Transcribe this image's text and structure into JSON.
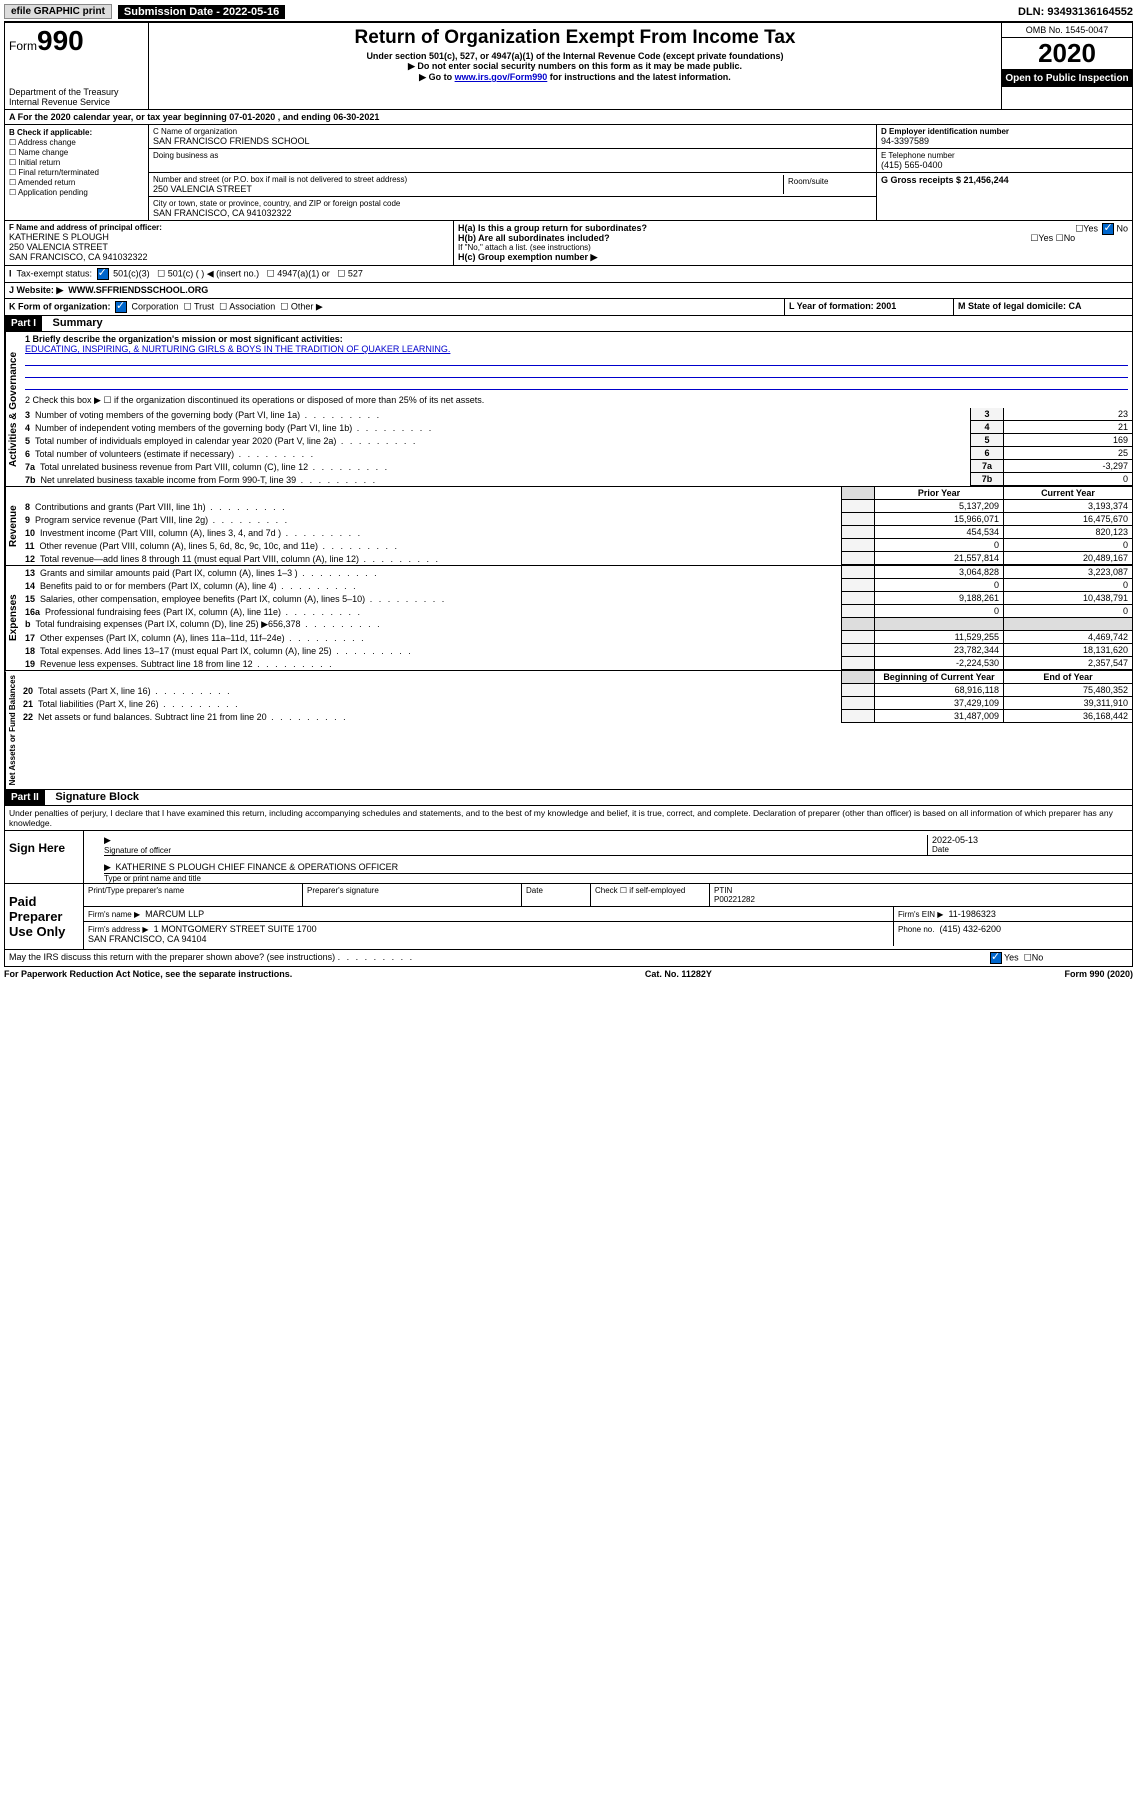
{
  "top": {
    "efile": "efile GRAPHIC print",
    "subdate_label": "Submission Date - 2022-05-16",
    "dln": "DLN: 93493136164552"
  },
  "header": {
    "form_prefix": "Form",
    "form_num": "990",
    "dept": "Department of the Treasury\nInternal Revenue Service",
    "title": "Return of Organization Exempt From Income Tax",
    "sub1": "Under section 501(c), 527, or 4947(a)(1) of the Internal Revenue Code (except private foundations)",
    "sub2": "▶ Do not enter social security numbers on this form as it may be made public.",
    "sub3_pre": "▶ Go to ",
    "sub3_link": "www.irs.gov/Form990",
    "sub3_post": " for instructions and the latest information.",
    "omb": "OMB No. 1545-0047",
    "year": "2020",
    "open": "Open to Public Inspection"
  },
  "period": "For the 2020 calendar year, or tax year beginning 07-01-2020   , and ending 06-30-2021",
  "checkif": {
    "label": "B Check if applicable:",
    "opts": [
      "Address change",
      "Name change",
      "Initial return",
      "Final return/terminated",
      "Amended return",
      "Application pending"
    ]
  },
  "entity": {
    "c_label": "C Name of organization",
    "name": "SAN FRANCISCO FRIENDS SCHOOL",
    "dba_label": "Doing business as",
    "addr_label": "Number and street (or P.O. box if mail is not delivered to street address)",
    "room_label": "Room/suite",
    "addr": "250 VALENCIA STREET",
    "city_label": "City or town, state or province, country, and ZIP or foreign postal code",
    "city": "SAN FRANCISCO, CA  941032322",
    "d_label": "D Employer identification number",
    "ein": "94-3397589",
    "e_label": "E Telephone number",
    "phone": "(415) 565-0400",
    "g_label": "G Gross receipts $ 21,456,244",
    "f_label": "F  Name and address of principal officer:",
    "officer": "KATHERINE S PLOUGH\n250 VALENCIA STREET\nSAN FRANCISCO, CA  941032322",
    "ha": "H(a)  Is this a group return for subordinates?",
    "hb": "H(b)  Are all subordinates included?",
    "hb_note": "If \"No,\" attach a list. (see instructions)",
    "hc": "H(c)  Group exemption number ▶",
    "yes": "Yes",
    "no": "No"
  },
  "taxstatus": "Tax-exempt status:",
  "status_opts": [
    "501(c)(3)",
    "501(c) (  ) ◀ (insert no.)",
    "4947(a)(1) or",
    "527"
  ],
  "website_label": "J   Website: ▶",
  "website": "WWW.SFFRIENDSSCHOOL.ORG",
  "k_label": "K Form of organization:",
  "k_opts": [
    "Corporation",
    "Trust",
    "Association",
    "Other ▶"
  ],
  "l_label": "L Year of formation: 2001",
  "m_label": "M State of legal domicile: CA",
  "part1": {
    "hdr": "Part I",
    "title": "Summary",
    "line1_label": "1  Briefly describe the organization's mission or most significant activities:",
    "mission": "EDUCATING, INSPIRING, & NURTURING GIRLS & BOYS IN THE TRADITION OF QUAKER LEARNING.",
    "line2": "2   Check this box ▶ ☐  if the organization discontinued its operations or disposed of more than 25% of its net assets.",
    "lines_gov": [
      {
        "n": "3",
        "t": "Number of voting members of the governing body (Part VI, line 1a)",
        "v": "23"
      },
      {
        "n": "4",
        "t": "Number of independent voting members of the governing body (Part VI, line 1b)",
        "v": "21"
      },
      {
        "n": "5",
        "t": "Total number of individuals employed in calendar year 2020 (Part V, line 2a)",
        "v": "169"
      },
      {
        "n": "6",
        "t": "Total number of volunteers (estimate if necessary)",
        "v": "25"
      },
      {
        "n": "7a",
        "t": "Total unrelated business revenue from Part VIII, column (C), line 12",
        "v": "-3,297"
      },
      {
        "n": "7b",
        "t": "Net unrelated business taxable income from Form 990-T, line 39",
        "v": "0"
      }
    ],
    "col_prior": "Prior Year",
    "col_curr": "Current Year",
    "lines_rev": [
      {
        "n": "8",
        "t": "Contributions and grants (Part VIII, line 1h)",
        "p": "5,137,209",
        "c": "3,193,374"
      },
      {
        "n": "9",
        "t": "Program service revenue (Part VIII, line 2g)",
        "p": "15,966,071",
        "c": "16,475,670"
      },
      {
        "n": "10",
        "t": "Investment income (Part VIII, column (A), lines 3, 4, and 7d )",
        "p": "454,534",
        "c": "820,123"
      },
      {
        "n": "11",
        "t": "Other revenue (Part VIII, column (A), lines 5, 6d, 8c, 9c, 10c, and 11e)",
        "p": "0",
        "c": "0"
      },
      {
        "n": "12",
        "t": "Total revenue—add lines 8 through 11 (must equal Part VIII, column (A), line 12)",
        "p": "21,557,814",
        "c": "20,489,167"
      }
    ],
    "lines_exp": [
      {
        "n": "13",
        "t": "Grants and similar amounts paid (Part IX, column (A), lines 1–3 )",
        "p": "3,064,828",
        "c": "3,223,087"
      },
      {
        "n": "14",
        "t": "Benefits paid to or for members (Part IX, column (A), line 4)",
        "p": "0",
        "c": "0"
      },
      {
        "n": "15",
        "t": "Salaries, other compensation, employee benefits (Part IX, column (A), lines 5–10)",
        "p": "9,188,261",
        "c": "10,438,791"
      },
      {
        "n": "16a",
        "t": "Professional fundraising fees (Part IX, column (A), line 11e)",
        "p": "0",
        "c": "0"
      },
      {
        "n": "b",
        "t": "Total fundraising expenses (Part IX, column (D), line 25) ▶656,378",
        "p": "",
        "c": ""
      },
      {
        "n": "17",
        "t": "Other expenses (Part IX, column (A), lines 11a–11d, 11f–24e)",
        "p": "11,529,255",
        "c": "4,469,742"
      },
      {
        "n": "18",
        "t": "Total expenses. Add lines 13–17 (must equal Part IX, column (A), line 25)",
        "p": "23,782,344",
        "c": "18,131,620"
      },
      {
        "n": "19",
        "t": "Revenue less expenses. Subtract line 18 from line 12",
        "p": "-2,224,530",
        "c": "2,357,547"
      }
    ],
    "col_begin": "Beginning of Current Year",
    "col_end": "End of Year",
    "lines_net": [
      {
        "n": "20",
        "t": "Total assets (Part X, line 16)",
        "p": "68,916,118",
        "c": "75,480,352"
      },
      {
        "n": "21",
        "t": "Total liabilities (Part X, line 26)",
        "p": "37,429,109",
        "c": "39,311,910"
      },
      {
        "n": "22",
        "t": "Net assets or fund balances. Subtract line 21 from line 20",
        "p": "31,487,009",
        "c": "36,168,442"
      }
    ],
    "tabs": {
      "gov": "Activities & Governance",
      "rev": "Revenue",
      "exp": "Expenses",
      "net": "Net Assets or Fund Balances"
    }
  },
  "part2": {
    "hdr": "Part II",
    "title": "Signature Block",
    "decl": "Under penalties of perjury, I declare that I have examined this return, including accompanying schedules and statements, and to the best of my knowledge and belief, it is true, correct, and complete. Declaration of preparer (other than officer) is based on all information of which preparer has any knowledge.",
    "sign_here": "Sign Here",
    "sig_officer": "Signature of officer",
    "date": "Date",
    "sig_date": "2022-05-13",
    "officer_name": "KATHERINE S PLOUGH  CHIEF FINANCE & OPERATIONS OFFICER",
    "type_name": "Type or print name and title",
    "paid": "Paid Preparer Use Only",
    "prep_name_label": "Print/Type preparer's name",
    "prep_sig_label": "Preparer's signature",
    "date_label": "Date",
    "check_self": "Check ☐ if self-employed",
    "ptin_label": "PTIN",
    "ptin": "P00221282",
    "firm_name_label": "Firm's name   ▶",
    "firm_name": "MARCUM LLP",
    "firm_ein_label": "Firm's EIN ▶",
    "firm_ein": "11-1986323",
    "firm_addr_label": "Firm's address ▶",
    "firm_addr": "1 MONTGOMERY STREET SUITE 1700\nSAN FRANCISCO, CA  94104",
    "firm_phone_label": "Phone no.",
    "firm_phone": "(415) 432-6200",
    "discuss": "May the IRS discuss this return with the preparer shown above? (see instructions)"
  },
  "footer": {
    "left": "For Paperwork Reduction Act Notice, see the separate instructions.",
    "mid": "Cat. No. 11282Y",
    "right": "Form 990 (2020)"
  }
}
